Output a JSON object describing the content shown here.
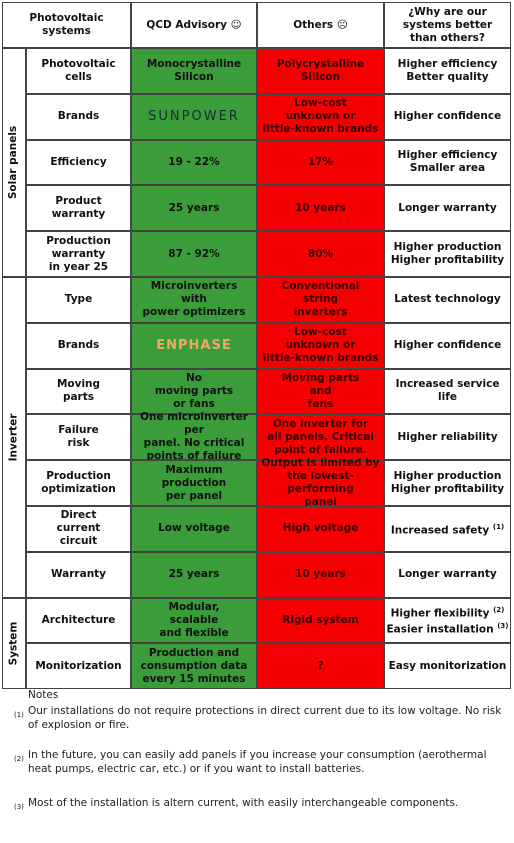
{
  "header": {
    "systems": "Photovoltaic\nsystems",
    "qcd": "QCD Advisory ☺",
    "others": "Others ☹",
    "why": "¿Why are our\nsystems better\nthan others?"
  },
  "groups": [
    {
      "label": "Solar panels",
      "rows": [
        {
          "feature": "Photovoltaic\ncells",
          "qcd": "Monocrystalline\nSilicon",
          "others": "Polycrystalline\nSilicon",
          "why": [
            {
              "text": "Higher efficiency"
            },
            {
              "text": "Better quality"
            }
          ]
        },
        {
          "feature": "Brands",
          "qcd_logo": "SUNPOWER",
          "others": "Low-cost\nunknown or\nlittle-known brands",
          "why": [
            {
              "text": "Higher confidence"
            }
          ]
        },
        {
          "feature": "Efficiency",
          "qcd": "19 - 22%",
          "others": "17%",
          "why": [
            {
              "text": "Higher efficiency"
            },
            {
              "text": "Smaller area"
            }
          ]
        },
        {
          "feature": "Product\nwarranty",
          "qcd": "25 years",
          "others": "10 years",
          "why": [
            {
              "text": "Longer warranty"
            }
          ]
        },
        {
          "feature": "Production\nwarranty\nin year 25",
          "qcd": "87 - 92%",
          "others": "80%",
          "why": [
            {
              "text": "Higher production"
            },
            {
              "text": "Higher profitability"
            }
          ]
        }
      ]
    },
    {
      "label": "Inverter",
      "rows": [
        {
          "feature": "Type",
          "qcd": "Microinverters\nwith\npower optimizers",
          "others": "Conventional\nstring\ninverters",
          "why": [
            {
              "text": "Latest technology"
            }
          ]
        },
        {
          "feature": "Brands",
          "qcd_logo": "ENPHASE",
          "others": "Low-cost\nunknown or\nlittle-known brands",
          "why": [
            {
              "text": "Higher confidence"
            }
          ]
        },
        {
          "feature": "Moving\nparts",
          "qcd": "No\nmoving parts\nor fans",
          "others": "Moving parts\nand\nfans",
          "why": [
            {
              "text": "Increased service life"
            }
          ]
        },
        {
          "feature": "Failure\nrisk",
          "qcd": "One microinverter per\npanel. No critical\npoints of failure",
          "others": "One inverter for\nall panels. Critical\npoint of failure.",
          "why": [
            {
              "text": "Higher reliability"
            }
          ]
        },
        {
          "feature": "Production\noptimization",
          "qcd": "Maximum\nproduction\nper panel",
          "others": "Output is limited by\nthe lowest-performing\npanel",
          "why": [
            {
              "text": "Higher production"
            },
            {
              "text": "Higher profitability"
            }
          ]
        },
        {
          "feature": "Direct\ncurrent\ncircuit",
          "qcd": "Low voltage",
          "others": "High voltage",
          "why": [
            {
              "text": "Increased safety",
              "sup": "(1)"
            }
          ]
        },
        {
          "feature": "Warranty",
          "qcd": "25 years",
          "others": "10 years",
          "why": [
            {
              "text": "Longer warranty"
            }
          ]
        }
      ]
    },
    {
      "label": "System",
      "rows": [
        {
          "feature": "Architecture",
          "qcd": "Modular,\nscalable\nand flexible",
          "others": "Rigid system",
          "why": [
            {
              "text": "Higher flexibility",
              "sup": "(2)"
            },
            {
              "text": "Easier installation",
              "sup": "(3)"
            }
          ]
        },
        {
          "feature": "Monitorization",
          "qcd": "Production and\nconsumption data\nevery 15 minutes",
          "others": "?",
          "why": [
            {
              "text": "Easy monitorization"
            }
          ]
        }
      ]
    }
  ],
  "notes": {
    "title": "Notes",
    "items": [
      {
        "marker": "(1)",
        "text": "Our installations do not require protections in direct current due to its low voltage. No risk of explosion or fire."
      },
      {
        "marker": "(2)",
        "text": "In the future, you can easily add panels if you increase your consumption (aerothermal heat pumps, electric car, etc.) or if you want to install batteries."
      },
      {
        "marker": "(3)",
        "text": "Most of the installation is altern current, with easily interchangeable components."
      }
    ]
  }
}
